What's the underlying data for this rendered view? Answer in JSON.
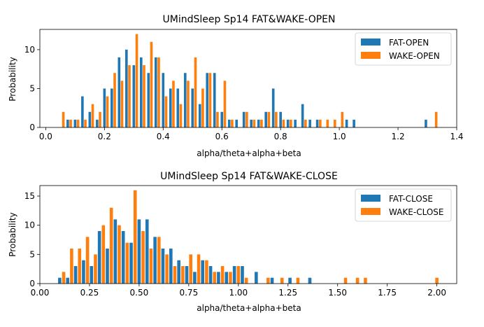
{
  "chart_data": [
    {
      "type": "bar",
      "title": "UMindSleep Sp14 FAT&WAKE-OPEN",
      "xlabel": "alpha/theta+alpha+beta",
      "ylabel": "Probability",
      "xlim": [
        -0.02,
        1.4
      ],
      "ylim": [
        0,
        12.6
      ],
      "xticks": [
        0.0,
        0.2,
        0.4,
        0.6,
        0.8,
        1.0,
        1.2,
        1.4
      ],
      "xtick_labels": [
        "0.0",
        "0.2",
        "0.4",
        "0.6",
        "0.8",
        "1.0",
        "1.2",
        "1.4"
      ],
      "yticks": [
        0,
        5,
        10
      ],
      "ytick_labels": [
        "0",
        "5",
        "10"
      ],
      "legend_position": "top-right",
      "grid": false,
      "series": [
        {
          "name": "FAT-OPEN",
          "color": "#1f77b4",
          "x": [
            0.075,
            0.1,
            0.125,
            0.15,
            0.175,
            0.2,
            0.225,
            0.25,
            0.275,
            0.3,
            0.325,
            0.35,
            0.375,
            0.4,
            0.425,
            0.45,
            0.475,
            0.5,
            0.525,
            0.55,
            0.575,
            0.6,
            0.625,
            0.65,
            0.675,
            0.7,
            0.725,
            0.75,
            0.775,
            0.8,
            0.825,
            0.85,
            0.875,
            0.9,
            0.925,
            0.95,
            0.975,
            1.0,
            1.025,
            1.05,
            1.295
          ],
          "values": [
            1,
            1,
            4,
            2,
            1,
            5,
            5,
            9,
            10,
            8,
            9,
            7,
            9,
            7,
            5,
            5,
            7,
            5,
            3,
            7,
            7,
            2,
            1,
            1,
            2,
            1,
            1,
            2,
            5,
            2,
            1,
            1,
            3,
            1,
            1,
            0,
            0,
            0,
            1,
            1,
            1
          ]
        },
        {
          "name": "WAKE-OPEN",
          "color": "#ff7f0e",
          "x": [
            0.06,
            0.085,
            0.11,
            0.135,
            0.16,
            0.185,
            0.21,
            0.235,
            0.26,
            0.285,
            0.31,
            0.335,
            0.36,
            0.385,
            0.41,
            0.435,
            0.46,
            0.485,
            0.51,
            0.535,
            0.56,
            0.585,
            0.61,
            0.635,
            0.66,
            0.685,
            0.71,
            0.735,
            0.76,
            0.785,
            0.81,
            0.835,
            0.86,
            0.885,
            0.91,
            0.935,
            0.96,
            0.985,
            1.01,
            1.035,
            1.06,
            1.33
          ],
          "values": [
            2,
            1,
            1,
            1,
            3,
            2,
            4,
            7,
            6,
            8,
            12,
            8,
            11,
            9,
            4,
            6,
            3,
            6,
            9,
            5,
            7,
            2,
            6,
            1,
            0,
            2,
            1,
            1,
            2,
            2,
            1,
            1,
            0,
            1,
            0,
            1,
            1,
            1,
            2,
            0,
            0,
            2
          ]
        }
      ]
    },
    {
      "type": "bar",
      "title": "UMindSleep Sp14 FAT&WAKE-CLOSE",
      "xlabel": "alpha/theta+alpha+beta",
      "ylabel": "Probability",
      "xlim": [
        0.0,
        2.1
      ],
      "ylim": [
        0,
        16.8
      ],
      "xticks": [
        0.0,
        0.25,
        0.5,
        0.75,
        1.0,
        1.25,
        1.5,
        1.75,
        2.0
      ],
      "xtick_labels": [
        "0.00",
        "0.25",
        "0.50",
        "0.75",
        "1.00",
        "1.25",
        "1.50",
        "1.75",
        "2.00"
      ],
      "yticks": [
        0,
        5,
        10,
        15
      ],
      "ytick_labels": [
        "0",
        "5",
        "10",
        "15"
      ],
      "legend_position": "top-right",
      "grid": false,
      "series": [
        {
          "name": "FAT-CLOSE",
          "color": "#1f77b4",
          "x": [
            0.1,
            0.14,
            0.18,
            0.22,
            0.26,
            0.3,
            0.34,
            0.38,
            0.42,
            0.46,
            0.5,
            0.54,
            0.58,
            0.62,
            0.66,
            0.7,
            0.74,
            0.78,
            0.82,
            0.86,
            0.9,
            0.94,
            0.98,
            1.02,
            1.09,
            1.17,
            1.26,
            1.36
          ],
          "values": [
            1,
            1,
            3,
            4,
            3,
            9,
            6,
            11,
            9,
            7,
            11,
            11,
            8,
            6,
            6,
            4,
            3,
            2,
            4,
            3,
            2,
            2,
            3,
            3,
            2,
            1,
            1,
            1
          ]
        },
        {
          "name": "WAKE-CLOSE",
          "color": "#ff7f0e",
          "x": [
            0.12,
            0.16,
            0.2,
            0.24,
            0.28,
            0.32,
            0.36,
            0.4,
            0.44,
            0.48,
            0.52,
            0.56,
            0.6,
            0.64,
            0.68,
            0.72,
            0.76,
            0.8,
            0.84,
            0.88,
            0.92,
            0.96,
            1.0,
            1.04,
            1.15,
            1.22,
            1.3,
            1.54,
            1.6,
            1.64,
            2.0
          ],
          "values": [
            2,
            6,
            6,
            8,
            5,
            10,
            13,
            10,
            7,
            16,
            9,
            6,
            8,
            5,
            3,
            3,
            5,
            5,
            4,
            2,
            3,
            2,
            3,
            1,
            1,
            1,
            1,
            1,
            1,
            1,
            1
          ]
        }
      ]
    }
  ]
}
